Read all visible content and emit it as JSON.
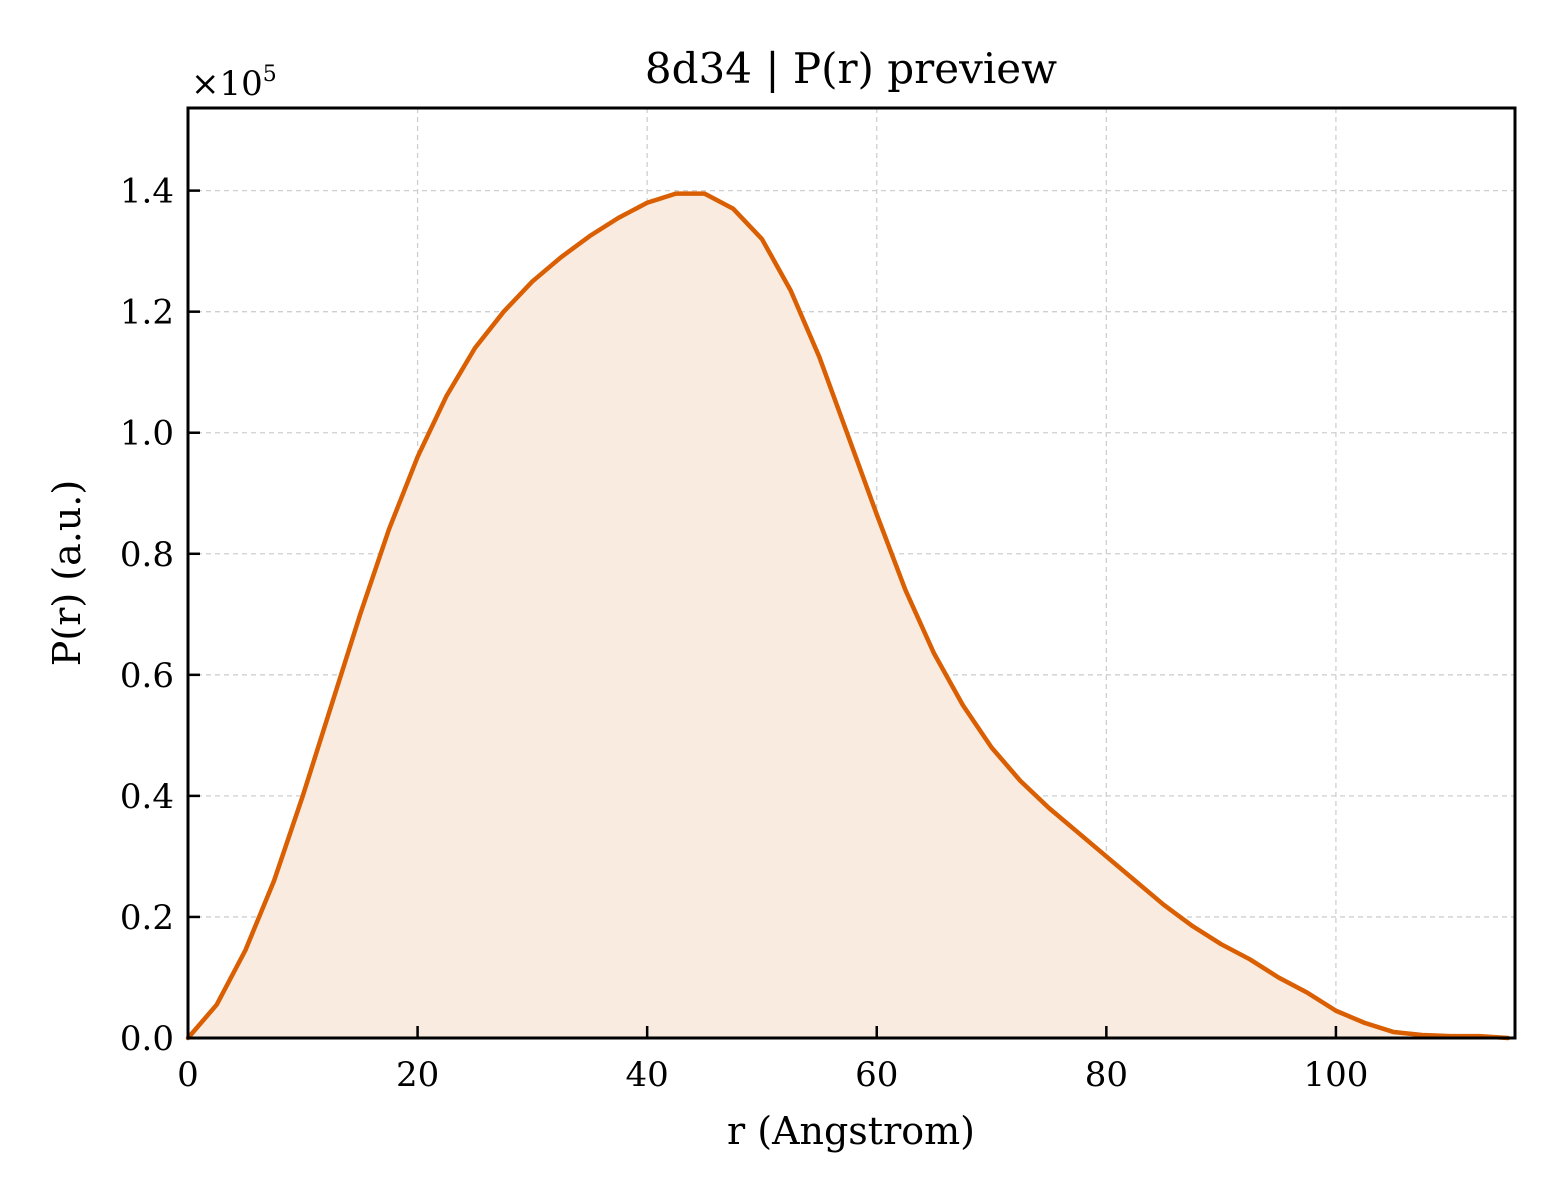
{
  "chart_data": {
    "type": "area",
    "title": "8d34 | P(r) preview",
    "xlabel": "r (Angstrom)",
    "ylabel": "P(r) (a.u.)",
    "y_offset_label": {
      "prefix": "×10",
      "exponent": "5"
    },
    "xlim": [
      0,
      115.6
    ],
    "ylim": [
      0,
      1.5365
    ],
    "y_scale_factor": 100000,
    "xticks": [
      0,
      20,
      40,
      60,
      80,
      100
    ],
    "yticks": [
      0.0,
      0.2,
      0.4,
      0.6,
      0.8,
      1.0,
      1.2,
      1.4
    ],
    "xtick_labels": [
      "0",
      "20",
      "40",
      "60",
      "80",
      "100"
    ],
    "ytick_labels": [
      "0.0",
      "0.2",
      "0.4",
      "0.6",
      "0.8",
      "1.0",
      "1.2",
      "1.4"
    ],
    "grid": true,
    "colors": {
      "line": "#d95f02",
      "fill": "#f9ebe0"
    },
    "series": [
      {
        "x": [
          0.0,
          2.5,
          5.0,
          7.5,
          10.0,
          12.5,
          15.0,
          17.5,
          20.0,
          22.5,
          25.0,
          27.5,
          30.0,
          32.5,
          35.0,
          37.5,
          40.0,
          42.5,
          45.0,
          47.5,
          50.0,
          52.5,
          55.0,
          57.5,
          60.0,
          62.5,
          65.0,
          67.5,
          70.0,
          72.5,
          75.0,
          77.5,
          80.0,
          82.5,
          85.0,
          87.5,
          90.0,
          92.5,
          95.0,
          97.5,
          100.0,
          102.5,
          105.0,
          107.5,
          110.0,
          112.5,
          115.0
        ],
        "values": [
          0.0,
          0.055,
          0.145,
          0.26,
          0.4,
          0.55,
          0.7,
          0.84,
          0.96,
          1.06,
          1.14,
          1.2,
          1.25,
          1.29,
          1.325,
          1.355,
          1.38,
          1.395,
          1.395,
          1.37,
          1.32,
          1.235,
          1.125,
          0.995,
          0.865,
          0.74,
          0.635,
          0.55,
          0.48,
          0.425,
          0.38,
          0.34,
          0.3,
          0.26,
          0.22,
          0.185,
          0.155,
          0.13,
          0.1,
          0.075,
          0.045,
          0.025,
          0.01,
          0.005,
          0.003,
          0.003,
          0.0
        ]
      }
    ]
  }
}
